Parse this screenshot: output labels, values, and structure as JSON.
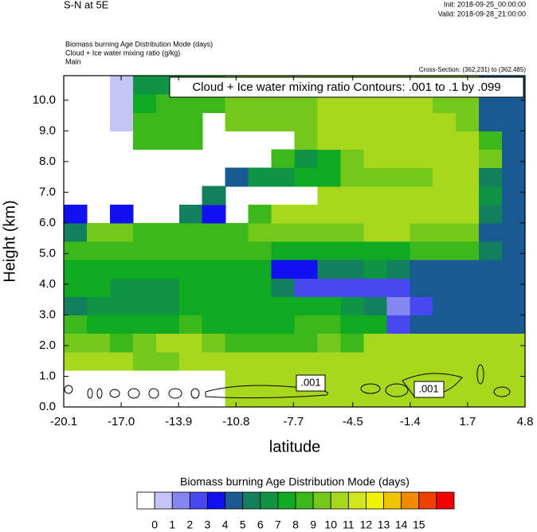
{
  "chart_data": {
    "type": "contour",
    "title": "S-N at 5E",
    "init": "Init: 2018-09-25_00:00:00",
    "valid": "Valid: 2018-09-28_21:00:00",
    "field_titles": [
      "Biomass burning Age Distribution Mode   (days)",
      "Cloud + Ice water mixing ratio   (g/kg)",
      "Main"
    ],
    "cross_section": "Cross-Section: (362,231) to (362,485)",
    "contour_legend": "Cloud + Ice water mixing ratio Contours: .001 to .1 by .099",
    "contour_labels": [
      ".001",
      ".001"
    ],
    "xlabel": "latitude",
    "ylabel": "Height (km)",
    "xlim": [
      -20.1,
      4.8
    ],
    "ylim": [
      0,
      10.8
    ],
    "xticks": [
      -20.1,
      {
        "value": -17.0,
        "label": "-17.0"
      },
      -13.9,
      -10.8,
      -7.7,
      -4.5,
      -1.4,
      1.7,
      4.8
    ],
    "yticks": [
      {
        "value": 0,
        "label": "0.0"
      },
      {
        "value": 1,
        "label": "1.0"
      },
      {
        "value": 2,
        "label": "2.0"
      },
      {
        "value": 3,
        "label": "3.0"
      },
      {
        "value": 4,
        "label": "4.0"
      },
      {
        "value": 5,
        "label": "5.0"
      },
      {
        "value": 6,
        "label": "6.0"
      },
      {
        "value": 7,
        "label": "7.0"
      },
      {
        "value": 8,
        "label": "8.0"
      },
      {
        "value": 9,
        "label": "9.0"
      },
      {
        "value": 10,
        "label": "10.0"
      }
    ],
    "colorbar_title": "Biomass burning Age Distribution Mode  (days)",
    "levels": [
      0,
      1,
      2,
      3,
      4,
      5,
      6,
      7,
      8,
      9,
      10,
      11,
      12,
      13,
      14,
      15
    ],
    "colors": [
      "#ffffff",
      "#c4c4f6",
      "#8686f0",
      "#4848f0",
      "#1010f0",
      "#1a5a92",
      "#12805c",
      "#0f9444",
      "#10aa22",
      "#3cb81c",
      "#74c81c",
      "#a8d81e",
      "#d2e620",
      "#f2f200",
      "#f2c400",
      "#f28a00",
      "#f04000",
      "#f00000"
    ],
    "z": [
      [
        null,
        null,
        null,
        null,
        null,
        null,
        null,
        10.5,
        10.5,
        10.5,
        10.5,
        10.5,
        10.5,
        10.5,
        10.5,
        10.5,
        10.5,
        10.5,
        10.5,
        10.5
      ],
      [
        null,
        null,
        null,
        null,
        null,
        null,
        null,
        10.5,
        10.5,
        10.5,
        10.5,
        10.5,
        10.5,
        10.5,
        10.5,
        10.5,
        10.5,
        10.5,
        10.5,
        10.5
      ],
      [
        10.5,
        10.5,
        10.5,
        9.5,
        9.5,
        10.5,
        10.5,
        10.5,
        10.5,
        10.5,
        10.5,
        10.5,
        10.5,
        10.5,
        10.5,
        10.5,
        10.5,
        10.5,
        10.5,
        10.5
      ],
      [
        9.5,
        9.5,
        8.5,
        9.5,
        10.5,
        10.5,
        9.5,
        8.5,
        8.5,
        8.5,
        8.5,
        9.5,
        8.5,
        10.5,
        10.5,
        10.5,
        10.5,
        10.5,
        10.5,
        10.5
      ],
      [
        8.5,
        7.5,
        7.5,
        7.5,
        7.5,
        8.5,
        7.5,
        7.5,
        7.5,
        7.5,
        8.5,
        8.5,
        7.5,
        7.5,
        2.5,
        4.5,
        4.5,
        4.5,
        4.5,
        4.5
      ],
      [
        5.5,
        6.5,
        6.5,
        6.5,
        6.5,
        7.5,
        7.5,
        7.5,
        7.5,
        7.5,
        7.5,
        7.5,
        6.5,
        5.5,
        1.5,
        2.5,
        4.5,
        4.5,
        4.5,
        4.5
      ],
      [
        7.5,
        7.5,
        6.5,
        6.5,
        6.5,
        7.5,
        7.5,
        7.5,
        7.5,
        5.5,
        2.5,
        2.5,
        2.5,
        2.5,
        2.5,
        4.5,
        4.5,
        4.5,
        4.5,
        4.5
      ],
      [
        7.5,
        7.5,
        7.5,
        7.5,
        7.5,
        7.5,
        7.5,
        7.5,
        7.5,
        3.5,
        3.5,
        5.5,
        5.5,
        6.5,
        5.5,
        4.5,
        4.5,
        4.5,
        4.5,
        4.5
      ],
      [
        8.5,
        8.5,
        8.5,
        8.5,
        8.5,
        8.5,
        8.5,
        8.5,
        8.5,
        7.5,
        7.5,
        7.5,
        7.5,
        7.5,
        7.5,
        8.5,
        8.5,
        8.5,
        5.5,
        4.5
      ],
      [
        5.5,
        9.5,
        9.5,
        8.5,
        8.5,
        8.5,
        8.5,
        8.5,
        9.5,
        9.5,
        9.5,
        9.5,
        9.5,
        10.5,
        10.5,
        9.5,
        9.5,
        9.5,
        4.5,
        4.5
      ],
      [
        3.5,
        null,
        3.5,
        null,
        null,
        5.5,
        3.5,
        null,
        8.5,
        10.5,
        10.5,
        10.5,
        10.5,
        10.5,
        10.5,
        10.5,
        10.5,
        10.5,
        5.5,
        4.5
      ],
      [
        null,
        null,
        null,
        null,
        null,
        null,
        5.5,
        null,
        null,
        null,
        null,
        10.5,
        10.5,
        10.5,
        10.5,
        10.5,
        10.5,
        10.5,
        6.5,
        4.5
      ],
      [
        null,
        null,
        null,
        null,
        null,
        null,
        null,
        4.5,
        6.5,
        6.5,
        7.5,
        7.5,
        9.5,
        9.5,
        9.5,
        9.5,
        10.5,
        10.5,
        5.5,
        4.5
      ],
      [
        null,
        null,
        null,
        null,
        null,
        null,
        null,
        null,
        null,
        8.5,
        6.5,
        7.5,
        9.5,
        10.5,
        10.5,
        10.5,
        10.5,
        10.5,
        9.5,
        4.5
      ],
      [
        null,
        null,
        null,
        8.5,
        8.5,
        8.5,
        null,
        null,
        null,
        null,
        9.5,
        10.5,
        10.5,
        10.5,
        10.5,
        10.5,
        10.5,
        10.5,
        8.5,
        4.5
      ],
      [
        null,
        null,
        0.5,
        8.5,
        8.5,
        8.5,
        null,
        9.5,
        9.5,
        9.5,
        9.5,
        10.5,
        10.5,
        10.5,
        10.5,
        10.5,
        10.5,
        9.5,
        4.5,
        4.5
      ],
      [
        null,
        null,
        0.5,
        7.5,
        8.5,
        8.5,
        8.5,
        9.5,
        9.5,
        9.5,
        9.5,
        10.5,
        10.5,
        10.5,
        10.5,
        10.5,
        9.5,
        9.5,
        4.5,
        4.5
      ],
      [
        null,
        null,
        0.5,
        6.5,
        6.5,
        7.5,
        7.5,
        9.5,
        9.5,
        9.5,
        9.5,
        9.5,
        9.5,
        9.5,
        9.5,
        9.5,
        9.5,
        9.5,
        4.5,
        4.5
      ]
    ]
  }
}
